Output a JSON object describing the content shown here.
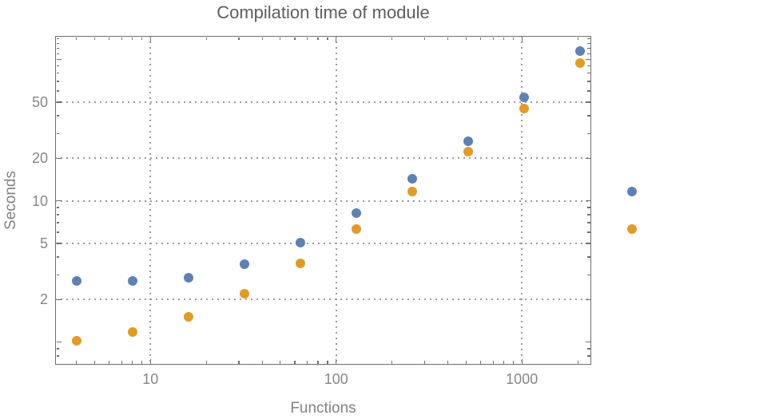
{
  "window": {
    "background": "#ffffff"
  },
  "colors": {
    "frame": "#6f6f6f",
    "grid": "#9b9b9b",
    "tick_label": "#878787",
    "axis_label": "#828282",
    "title": "#5d5d5d",
    "series_blue": "#5e81b5",
    "series_orange": "#e19c24"
  },
  "chart_data": {
    "type": "scatter",
    "title": "Compilation time of module",
    "xlabel": "Functions",
    "ylabel": "Seconds",
    "x_scale": "log",
    "y_scale": "log",
    "xlim": [
      3.07,
      2362
    ],
    "ylim": [
      0.693,
      147
    ],
    "grid": "dotted",
    "legend": "none",
    "x_gridlines": [
      10,
      100,
      1000
    ],
    "y_gridlines": [
      2,
      5,
      10,
      20,
      50
    ],
    "x_ticks_major": [
      10,
      100,
      1000
    ],
    "x_tick_labels": [
      "10",
      "100",
      "1000"
    ],
    "x_ticks_minor": [
      4,
      5,
      6,
      7,
      8,
      9,
      20,
      30,
      40,
      50,
      60,
      70,
      80,
      90,
      200,
      300,
      400,
      500,
      600,
      700,
      800,
      900,
      2000
    ],
    "y_ticks_major": [
      2,
      5,
      10,
      20,
      50
    ],
    "y_tick_labels": [
      "2",
      "5",
      "10",
      "20",
      "50"
    ],
    "y_ticks_major_unlabeled": [
      1,
      100
    ],
    "y_ticks_minor": [
      0.8,
      0.9,
      3,
      4,
      6,
      7,
      8,
      9,
      30,
      40,
      60,
      70,
      80,
      90,
      110,
      120,
      130,
      140
    ],
    "x": [
      4,
      8,
      16,
      32,
      64,
      128,
      256,
      512,
      1024,
      2048
    ],
    "series": [
      {
        "name": "blue-series",
        "color": "#5e81b5",
        "values": [
          2.7,
          2.7,
          2.85,
          3.55,
          5.05,
          8.2,
          14.4,
          26.5,
          54,
          115
        ]
      },
      {
        "name": "orange-series",
        "color": "#e19c24",
        "values": [
          1.02,
          1.18,
          1.52,
          2.2,
          3.6,
          6.3,
          11.7,
          22.3,
          45,
          94
        ]
      }
    ],
    "detached_markers": [
      {
        "series": "blue-series",
        "color": "#5e81b5",
        "x_est": 3900,
        "y": 11.6
      },
      {
        "series": "orange-series",
        "color": "#e19c24",
        "x_est": 3900,
        "y": 6.3
      }
    ]
  }
}
